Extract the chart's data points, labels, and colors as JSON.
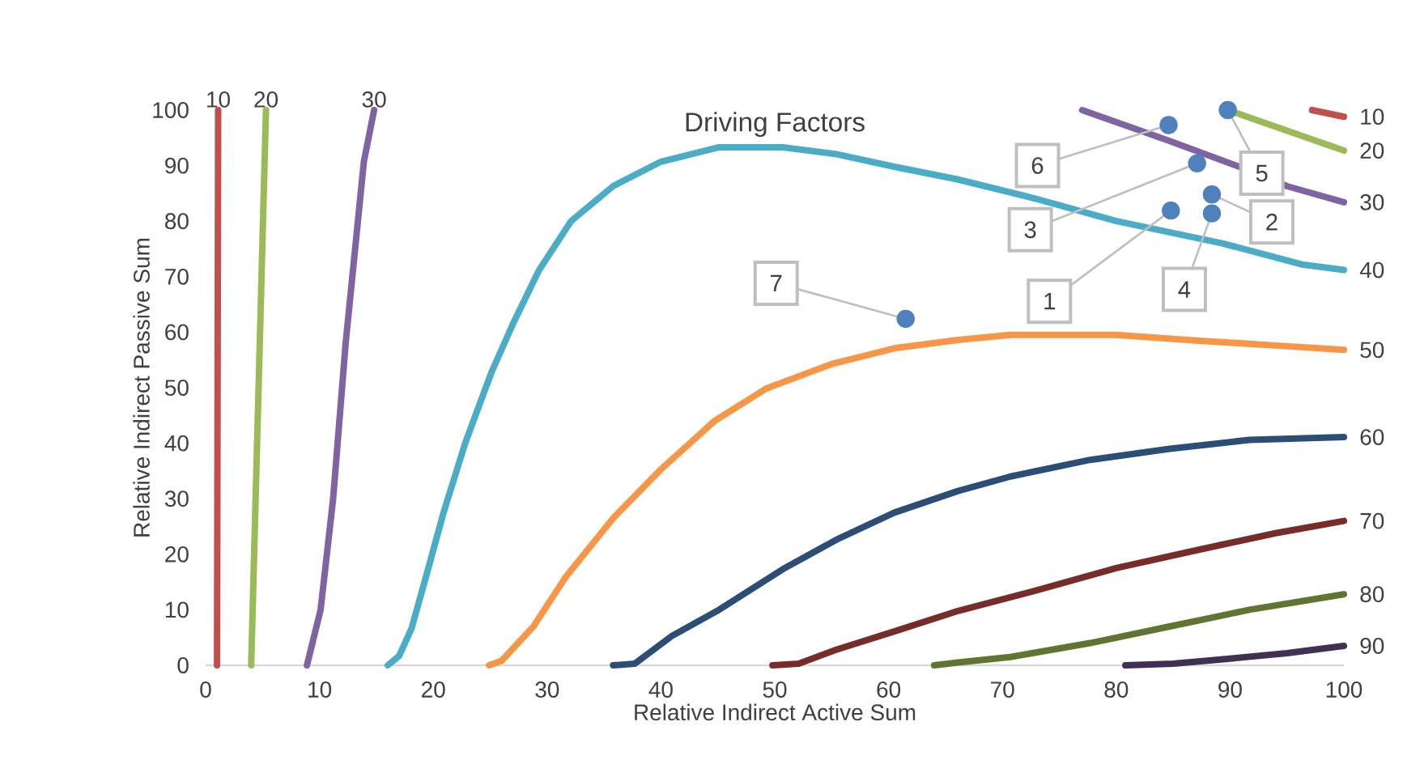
{
  "chart_data": {
    "type": "line",
    "title": "Driving Factors",
    "xlabel": "Relative Indirect Active Sum",
    "ylabel": "Relative Indirect Passive Sum",
    "xlim": [
      0,
      100
    ],
    "ylim": [
      0,
      100
    ],
    "xticks": [
      0,
      10,
      20,
      30,
      40,
      50,
      60,
      70,
      80,
      90,
      100
    ],
    "yticks": [
      0,
      10,
      20,
      30,
      40,
      50,
      60,
      70,
      80,
      90,
      100
    ],
    "line_style": "solid",
    "series": [
      {
        "name": "10",
        "color": "#c0504d",
        "x": [
          1,
          1.1,
          null,
          97.2,
          100
        ],
        "values": [
          0,
          100,
          null,
          100,
          98.8
        ]
      },
      {
        "name": "20",
        "color": "#9bbb59",
        "x": [
          4,
          5.3,
          null,
          89.8,
          100
        ],
        "values": [
          0,
          100,
          null,
          100,
          92.7
        ]
      },
      {
        "name": "30",
        "color": "#8064a2",
        "x": [
          8.9,
          10.1,
          11.2,
          12.3,
          13.9,
          14.8,
          null,
          77,
          84.6,
          90.8,
          95,
          100
        ],
        "values": [
          0,
          10,
          30,
          58,
          90.7,
          100,
          null,
          100,
          94.5,
          89.8,
          86.3,
          83.4
        ]
      },
      {
        "name": "40",
        "color": "#4bacc6",
        "x": [
          16,
          17,
          18.1,
          19.5,
          20.9,
          22.8,
          25.1,
          27,
          29.3,
          32.1,
          35.8,
          40,
          45.1,
          50.7,
          55.3,
          60.5,
          66.1,
          73,
          80,
          89.3,
          96.3,
          100
        ],
        "values": [
          0,
          1.7,
          6.7,
          17,
          27.5,
          40,
          52.7,
          61.5,
          71.2,
          80,
          86.3,
          90.7,
          93.3,
          93.3,
          92.1,
          89.8,
          87.5,
          84,
          80,
          76,
          72.2,
          71.2
        ]
      },
      {
        "name": "50",
        "color": "#f79646",
        "x": [
          24.9,
          26,
          28.8,
          31.6,
          35.8,
          40,
          44.7,
          49.3,
          54.9,
          60.5,
          66.1,
          70.7,
          80,
          87,
          94,
          100
        ],
        "values": [
          0,
          0.8,
          7,
          15.8,
          26.5,
          35.3,
          44,
          49.9,
          54.2,
          57.1,
          58.6,
          59.5,
          59.5,
          58.5,
          57.6,
          56.8
        ]
      },
      {
        "name": "60",
        "color": "#2c4d75",
        "x": [
          35.8,
          37.7,
          40.9,
          45.1,
          50.7,
          55.4,
          60.5,
          66.1,
          70.7,
          77.7,
          84.7,
          91.7,
          100
        ],
        "values": [
          0,
          0.3,
          5.2,
          10,
          17.3,
          22.6,
          27.5,
          31.4,
          34,
          37,
          39,
          40.6,
          41.1
        ]
      },
      {
        "name": "70",
        "color": "#772c2a",
        "x": [
          49.8,
          52.1,
          55.4,
          60.5,
          66.1,
          73,
          80,
          87,
          94,
          100
        ],
        "values": [
          0,
          0.3,
          2.8,
          6.1,
          9.8,
          13.5,
          17.5,
          20.7,
          23.8,
          26
        ]
      },
      {
        "name": "80",
        "color": "#5f7530",
        "x": [
          64,
          66.1,
          70.7,
          77.7,
          84.7,
          91.7,
          100
        ],
        "values": [
          0,
          0.5,
          1.5,
          4,
          7,
          10,
          12.8
        ]
      },
      {
        "name": "90",
        "color": "#403152",
        "x": [
          80.8,
          85,
          90,
          95,
          100
        ],
        "values": [
          0,
          0.3,
          1.2,
          2.2,
          3.5
        ]
      },
      {
        "type": "scatter",
        "color": "#4f81bd",
        "marker": "circle",
        "x": [
          84.8,
          88.4,
          87.1,
          88.4,
          89.8,
          84.6,
          61.5
        ],
        "values": [
          81.9,
          84.8,
          90.4,
          81.4,
          100,
          97.3,
          62.4
        ]
      }
    ],
    "annotations": [
      {
        "text": "1",
        "x": 84.8,
        "y": 81.9
      },
      {
        "text": "2",
        "x": 88.4,
        "y": 84.8
      },
      {
        "text": "3",
        "x": 87.1,
        "y": 90.4
      },
      {
        "text": "4",
        "x": 88.4,
        "y": 81.4
      },
      {
        "text": "5",
        "x": 89.8,
        "y": 100
      },
      {
        "text": "6",
        "x": 84.6,
        "y": 97.3
      },
      {
        "text": "7",
        "x": 61.5,
        "y": 62.4
      }
    ]
  }
}
